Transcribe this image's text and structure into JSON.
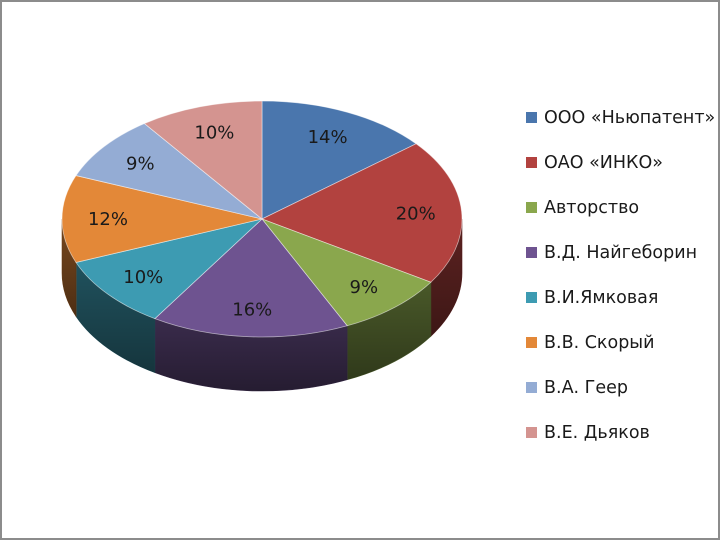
{
  "chart_data": {
    "type": "pie",
    "style": "3d",
    "categories": [
      "ООО «Ньюпатент»",
      "ОАО «ИНКО»",
      "Авторство",
      "В.Д. Найгеборин",
      "В.И.Ямковая",
      "В.В. Скорый",
      "В.А. Геер",
      "В.Е. Дьяков"
    ],
    "values": [
      14,
      20,
      9,
      16,
      10,
      12,
      9,
      10
    ],
    "value_labels": [
      "14%",
      "20%",
      "9%",
      "16%",
      "10%",
      "12%",
      "9%",
      "10%"
    ],
    "colors": [
      "#4a76ad",
      "#b2423f",
      "#8aa74d",
      "#6e5390",
      "#3d9bb2",
      "#e38838",
      "#94acd4",
      "#d49490"
    ],
    "legend_position": "right"
  }
}
